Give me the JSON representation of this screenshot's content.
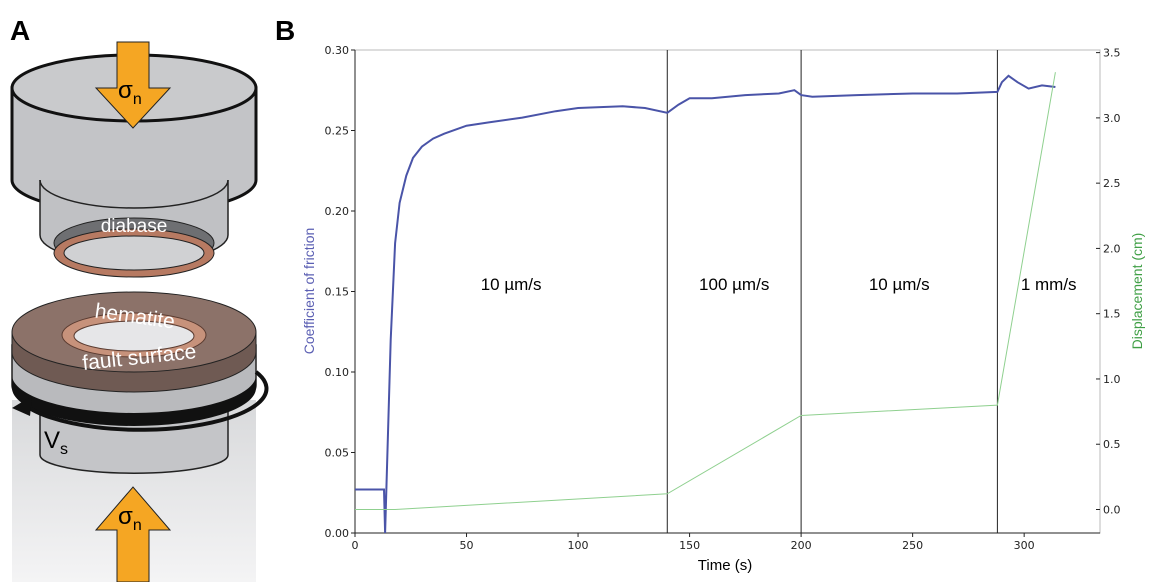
{
  "panel_labels": [
    "A",
    "B"
  ],
  "diagram": {
    "top_load": {
      "symbol": "σ",
      "subscript": "n"
    },
    "bottom_load": {
      "symbol": "σ",
      "subscript": "n"
    },
    "upper_sample": "diabase",
    "lower_sample": "hematite",
    "surface": "fault surface",
    "velocity": {
      "symbol": "V",
      "subscript": "s"
    }
  },
  "chart_data": {
    "type": "line",
    "xlabel": "Time (s)",
    "ylabel": "Coefficient of friction",
    "y2label": "Displacement (cm)",
    "xlim": [
      0,
      334
    ],
    "xticks": [
      0,
      50,
      100,
      150,
      200,
      250,
      300
    ],
    "ylim": [
      0,
      0.3
    ],
    "yticks": [
      {
        "value": 0,
        "label": "0.00"
      },
      {
        "value": 0.05,
        "label": "0.05"
      },
      {
        "value": 0.1,
        "label": "0.10"
      },
      {
        "value": 0.15,
        "label": "0.15"
      },
      {
        "value": 0.2,
        "label": "0.20"
      },
      {
        "value": 0.25,
        "label": "0.25"
      },
      {
        "value": 0.3,
        "label": "0.30"
      }
    ],
    "y2lim": [
      -0.18,
      3.52
    ],
    "y2ticks": [
      {
        "value": 0,
        "label": "0.0"
      },
      {
        "value": 0.5,
        "label": "0.5"
      },
      {
        "value": 1,
        "label": "1.0"
      },
      {
        "value": 1.5,
        "label": "1.5"
      },
      {
        "value": 2,
        "label": "2.0"
      },
      {
        "value": 2.5,
        "label": "2.5"
      },
      {
        "value": 3,
        "label": "3.0"
      },
      {
        "value": 3.5,
        "label": "3.5"
      }
    ],
    "ylabel_color": "#5b5fb3",
    "y2label_color": "#3f9f45",
    "series": [
      {
        "color": "#4a54a8",
        "x": [
          0,
          13,
          13.5,
          16,
          18,
          20,
          23,
          26,
          30,
          35,
          40,
          50,
          60,
          75,
          90,
          100,
          120,
          130,
          140,
          145,
          150,
          160,
          175,
          190,
          197,
          200,
          205,
          225,
          250,
          270,
          288,
          290,
          293,
          297,
          302,
          308,
          314
        ],
        "values": [
          0.027,
          0.027,
          0.0,
          0.12,
          0.18,
          0.205,
          0.222,
          0.233,
          0.24,
          0.245,
          0.248,
          0.253,
          0.255,
          0.258,
          0.262,
          0.264,
          0.265,
          0.264,
          0.261,
          0.266,
          0.27,
          0.27,
          0.272,
          0.273,
          0.275,
          0.272,
          0.271,
          0.272,
          0.273,
          0.273,
          0.274,
          0.28,
          0.284,
          0.28,
          0.276,
          0.278,
          0.277
        ]
      },
      {
        "color": "#8fd08f",
        "axis": "y2",
        "x": [
          0,
          18,
          140,
          200,
          288,
          314
        ],
        "values": [
          0.0,
          0.0,
          0.12,
          0.72,
          0.8,
          3.35
        ]
      }
    ],
    "vlines": [
      140,
      200,
      288
    ],
    "velocity_labels": [
      "10 µm/s",
      "100 µm/s",
      "10 µm/s",
      "1 mm/s"
    ]
  }
}
